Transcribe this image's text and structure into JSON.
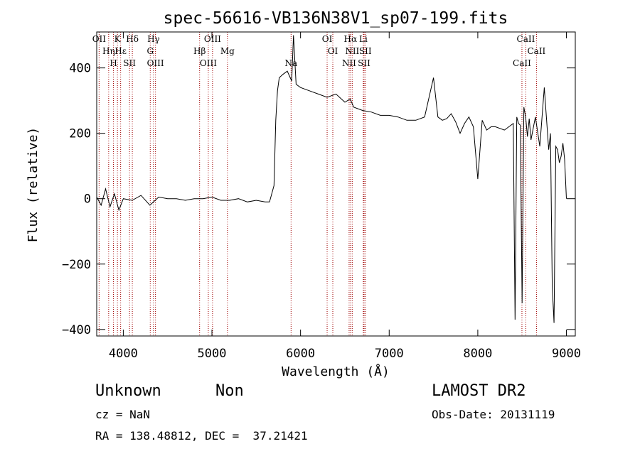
{
  "chart_data": {
    "type": "line",
    "title": "spec-56616-VB136N38V1_sp07-199.fits",
    "xlabel": "Wavelength (Å)",
    "ylabel": "Flux (relative)",
    "xlim": [
      3700,
      9100
    ],
    "ylim": [
      -420,
      510
    ],
    "x_ticks": [
      4000,
      5000,
      6000,
      7000,
      8000,
      9000
    ],
    "y_ticks": [
      -400,
      -200,
      0,
      200,
      400
    ],
    "grid": false,
    "series": [
      {
        "x": [
          3700,
          3750,
          3800,
          3850,
          3900,
          3950,
          4000,
          4100,
          4200,
          4300,
          4400,
          4500,
          4600,
          4700,
          4800,
          4900,
          5000,
          5100,
          5200,
          5300,
          5400,
          5500,
          5600,
          5650,
          5700,
          5720,
          5740,
          5760,
          5800,
          5850,
          5900,
          5920,
          5950,
          6000,
          6100,
          6200,
          6300,
          6400,
          6500,
          6560,
          6600,
          6700,
          6800,
          6900,
          7000,
          7100,
          7200,
          7300,
          7400,
          7500,
          7550,
          7600,
          7650,
          7700,
          7750,
          7800,
          7850,
          7900,
          7950,
          8000,
          8050,
          8100,
          8150,
          8200,
          8300,
          8400,
          8420,
          8440,
          8460,
          8480,
          8500,
          8520,
          8540,
          8560,
          8580,
          8600,
          8650,
          8700,
          8750,
          8800,
          8820,
          8840,
          8860,
          8880,
          8900,
          8920,
          8940,
          8960,
          8980,
          9000
        ],
        "y": [
          5,
          -20,
          30,
          -25,
          15,
          -35,
          0,
          -5,
          10,
          -20,
          5,
          0,
          0,
          -5,
          0,
          0,
          5,
          -5,
          -5,
          0,
          -10,
          -5,
          -10,
          -10,
          40,
          240,
          330,
          370,
          380,
          390,
          360,
          500,
          350,
          340,
          330,
          320,
          310,
          320,
          295,
          305,
          280,
          270,
          265,
          255,
          255,
          250,
          240,
          240,
          250,
          370,
          250,
          240,
          245,
          260,
          235,
          200,
          230,
          250,
          220,
          60,
          240,
          210,
          220,
          220,
          210,
          230,
          -370,
          250,
          230,
          225,
          -320,
          280,
          250,
          190,
          245,
          180,
          250,
          160,
          340,
          150,
          200,
          -270,
          -380,
          160,
          150,
          110,
          130,
          170,
          120,
          0
        ]
      }
    ],
    "line_markers": [
      {
        "label": "OII",
        "x": 3727
      },
      {
        "label": "Hη",
        "x": 3835
      },
      {
        "label": "H",
        "x": 3889
      },
      {
        "label": "K",
        "x": 3934
      },
      {
        "label": "Hε",
        "x": 3970
      },
      {
        "label": "SII",
        "x": 4070
      },
      {
        "label": "Hδ",
        "x": 4102
      },
      {
        "label": "G",
        "x": 4304
      },
      {
        "label": "OIII",
        "x": 4363
      },
      {
        "label": "Hγ",
        "x": 4341
      },
      {
        "label": "Hβ",
        "x": 4861
      },
      {
        "label": "OIII",
        "x": 4959
      },
      {
        "label": "OIII",
        "x": 5007
      },
      {
        "label": "Mg",
        "x": 5175
      },
      {
        "label": "Na",
        "x": 5893
      },
      {
        "label": "OI",
        "x": 6300
      },
      {
        "label": "OI",
        "x": 6364
      },
      {
        "label": "NII",
        "x": 6548
      },
      {
        "label": "Hα",
        "x": 6563
      },
      {
        "label": "NII",
        "x": 6583
      },
      {
        "label": "SII",
        "x": 6717
      },
      {
        "label": "Li",
        "x": 6708
      },
      {
        "label": "SII",
        "x": 6731
      },
      {
        "label": "CaII",
        "x": 8498
      },
      {
        "label": "CaII",
        "x": 8542
      },
      {
        "label": "CaII",
        "x": 8662
      }
    ]
  },
  "info": {
    "class_name": "Unknown",
    "subclass": "Non",
    "survey": "LAMOST DR2",
    "cz": "cz = NaN",
    "obs_date": "Obs-Date: 20131119",
    "coords": "RA = 138.48812, DEC =  37.21421"
  }
}
